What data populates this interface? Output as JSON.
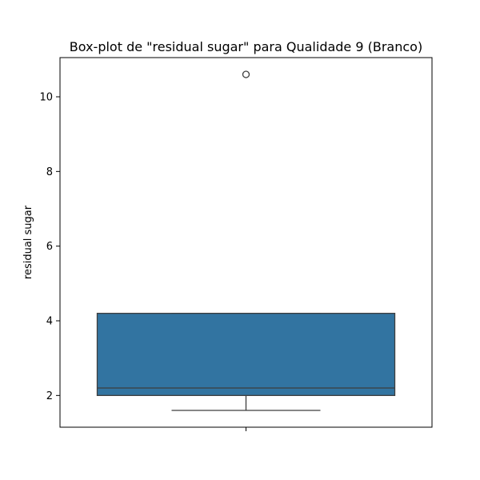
{
  "chart_data": {
    "type": "box",
    "title": "Box-plot de \"residual sugar\" para Qualidade 9 (Branco)",
    "xlabel": "",
    "ylabel": "residual sugar",
    "ylim": [
      1.15,
      11.05
    ],
    "yticks": [
      2,
      4,
      6,
      8,
      10
    ],
    "grid": false,
    "box": {
      "whisker_low": 1.6,
      "q1": 2.0,
      "median": 2.2,
      "q3": 4.2,
      "whisker_high": 4.2,
      "outliers": [
        10.6
      ]
    },
    "colors": {
      "box_fill": "#3274a1",
      "line": "#3d3d3d"
    }
  }
}
